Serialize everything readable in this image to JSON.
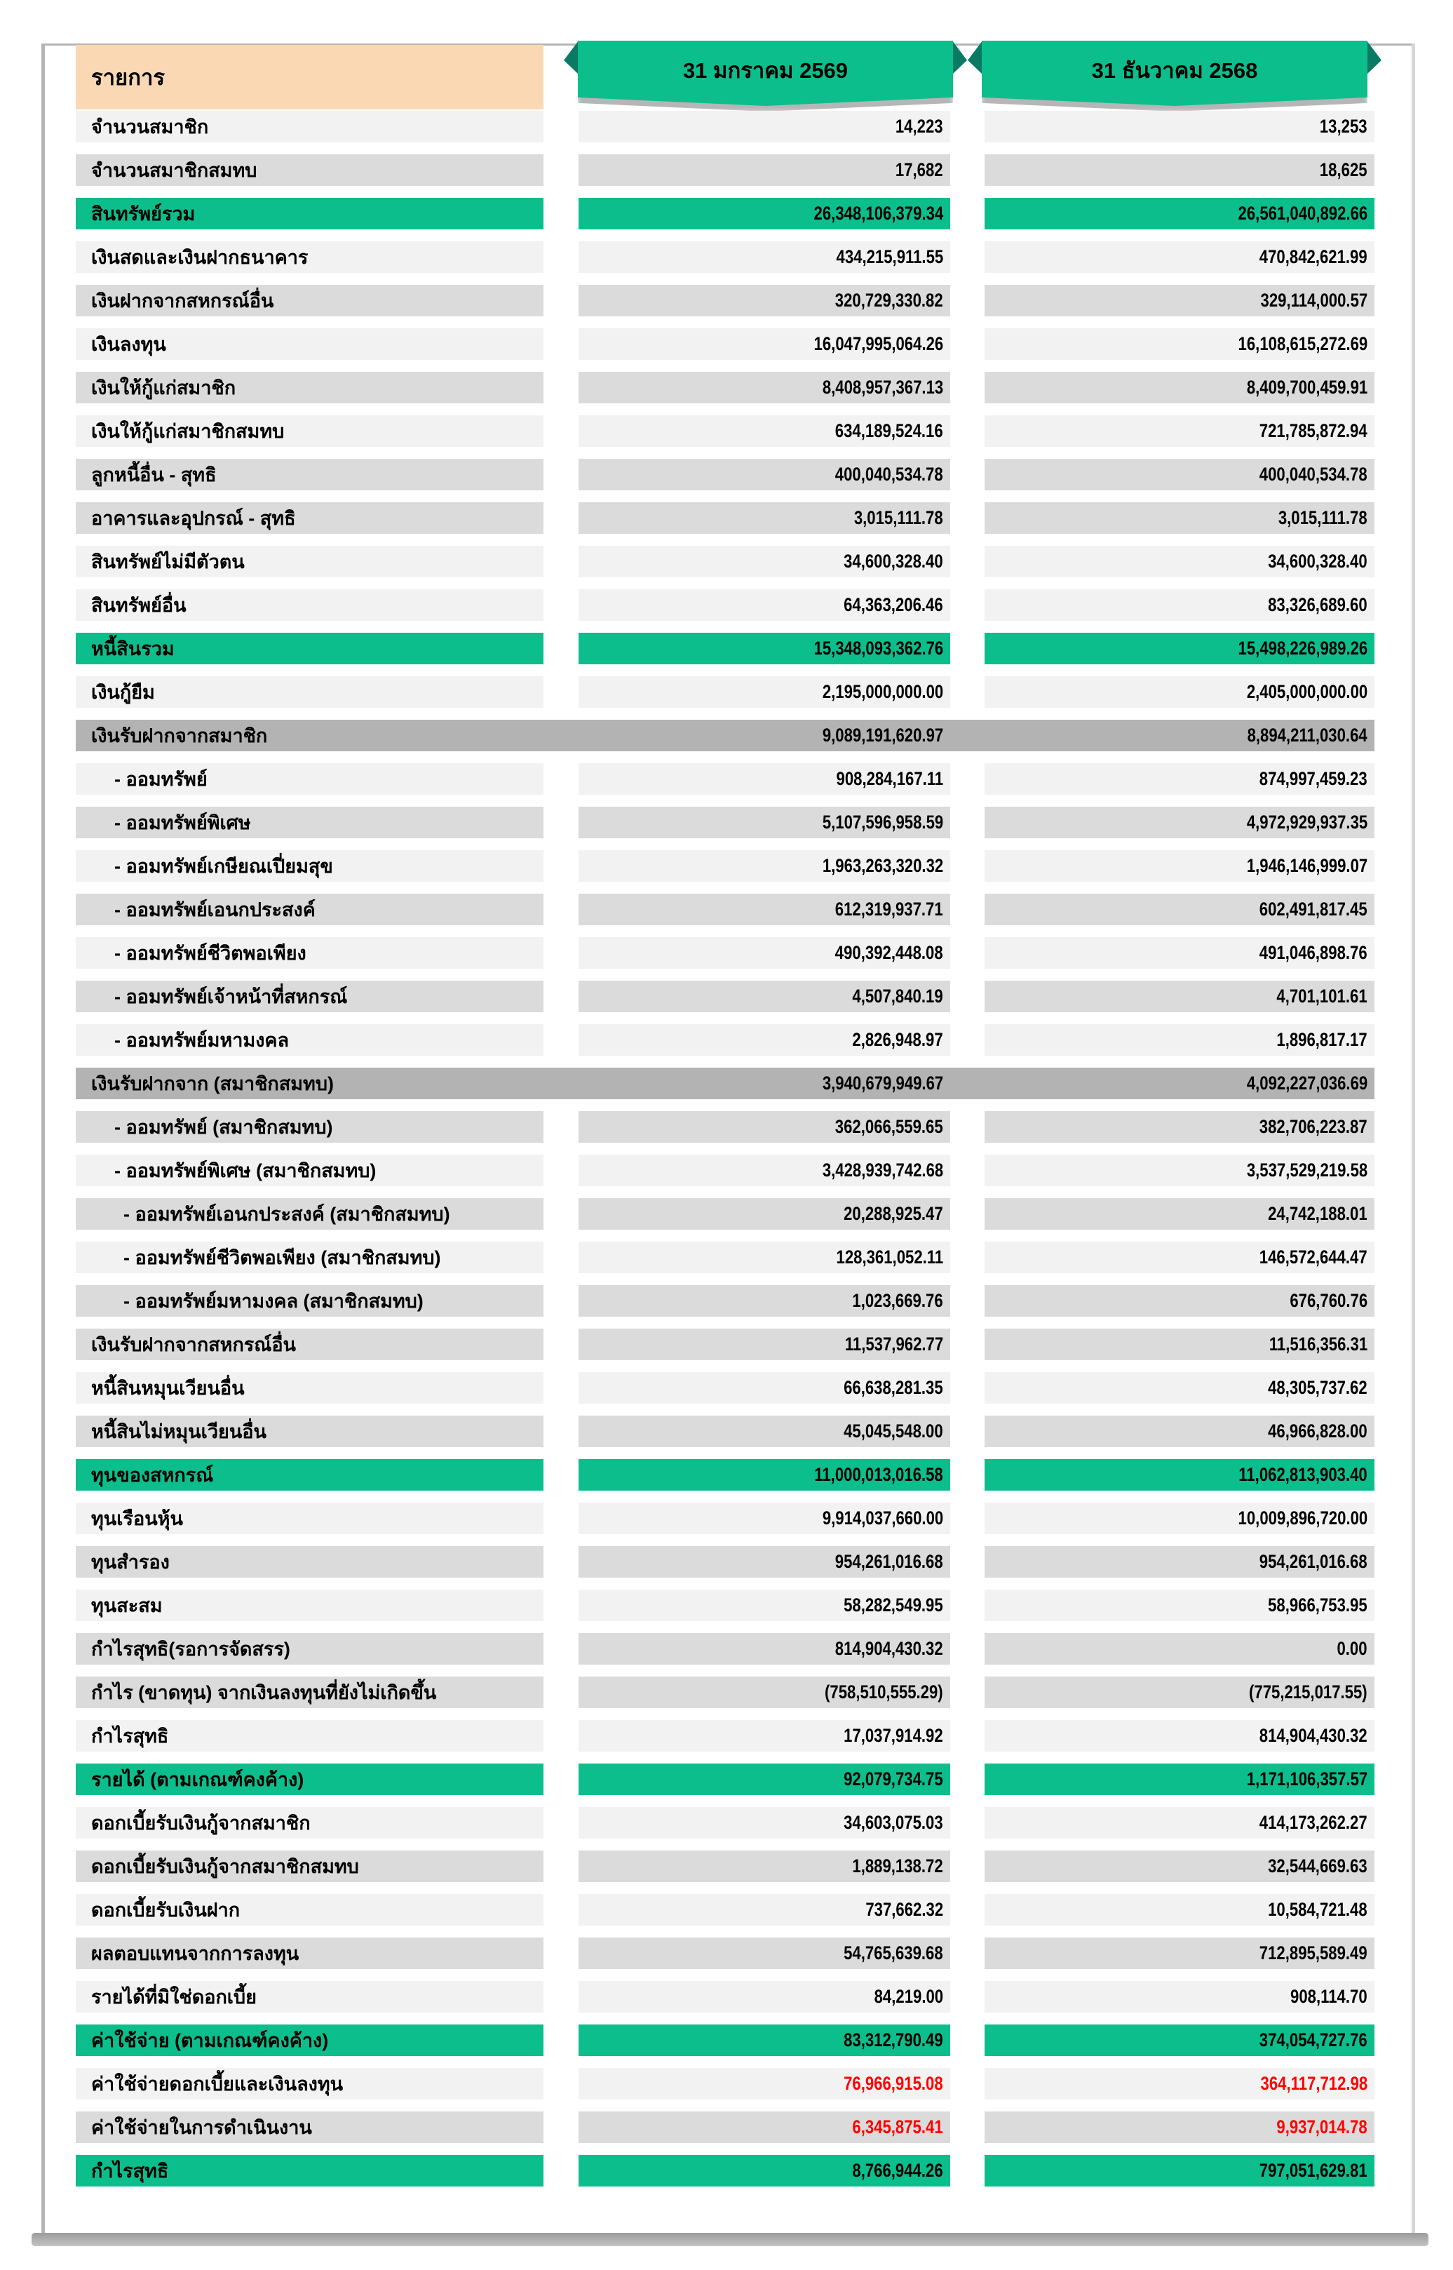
{
  "header": {
    "items_col": "รายการ",
    "col1": "31  มกราคม  2569",
    "col2": "31  ธันวาคม  2568"
  },
  "colors": {
    "green": "#0cbe8c",
    "green_fold": "#0a7a64",
    "orange": "#fad8b3",
    "row_light": "#f2f2f2",
    "row_dark": "#dbdbdb",
    "band_gray": "#b3b3b3",
    "value_red": "#ff0000",
    "frame_gray": "#b5b5b5"
  },
  "rows": [
    {
      "label": "จำนวนสมาชิก",
      "v1": "14,223",
      "v2": "13,253",
      "style": "light",
      "indent": 0,
      "red": false,
      "section_gap": false
    },
    {
      "label": "จำนวนสมาชิกสมทบ",
      "v1": "17,682",
      "v2": "18,625",
      "style": "dark",
      "indent": 0,
      "red": false,
      "section_gap": false
    },
    {
      "label": "สินทรัพย์รวม",
      "v1": "26,348,106,379.34",
      "v2": "26,561,040,892.66",
      "style": "green",
      "indent": 0,
      "red": false,
      "section_gap": true
    },
    {
      "label": "เงินสดและเงินฝากธนาคาร",
      "v1": "434,215,911.55",
      "v2": "470,842,621.99",
      "style": "light",
      "indent": 0,
      "red": false,
      "section_gap": false
    },
    {
      "label": "เงินฝากจากสหกรณ์อื่น",
      "v1": "320,729,330.82",
      "v2": "329,114,000.57",
      "style": "dark",
      "indent": 0,
      "red": false,
      "section_gap": false
    },
    {
      "label": "เงินลงทุน",
      "v1": "16,047,995,064.26",
      "v2": "16,108,615,272.69",
      "style": "light",
      "indent": 0,
      "red": false,
      "section_gap": false
    },
    {
      "label": "เงินให้กู้แก่สมาชิก",
      "v1": "8,408,957,367.13",
      "v2": "8,409,700,459.91",
      "style": "dark",
      "indent": 0,
      "red": false,
      "section_gap": false
    },
    {
      "label": "เงินให้กู้แก่สมาชิกสมทบ",
      "v1": "634,189,524.16",
      "v2": "721,785,872.94",
      "style": "light",
      "indent": 0,
      "red": false,
      "section_gap": false
    },
    {
      "label": "ลูกหนี้อื่น - สุทธิ",
      "v1": "400,040,534.78",
      "v2": "400,040,534.78",
      "style": "dark",
      "indent": 0,
      "red": false,
      "section_gap": false
    },
    {
      "label": "อาคารและอุปกรณ์ - สุทธิ",
      "v1": "3,015,111.78",
      "v2": "3,015,111.78",
      "style": "dark",
      "indent": 0,
      "red": false,
      "section_gap": false
    },
    {
      "label": "สินทรัพย์ไม่มีตัวตน",
      "v1": "34,600,328.40",
      "v2": "34,600,328.40",
      "style": "light",
      "indent": 0,
      "red": false,
      "section_gap": false
    },
    {
      "label": "สินทรัพย์อื่น",
      "v1": "64,363,206.46",
      "v2": "83,326,689.60",
      "style": "light",
      "indent": 0,
      "red": false,
      "section_gap": false
    },
    {
      "label": "หนี้สินรวม",
      "v1": "15,348,093,362.76",
      "v2": "15,498,226,989.26",
      "style": "green",
      "indent": 0,
      "red": false,
      "section_gap": true
    },
    {
      "label": "เงินกู้ยืม",
      "v1": "2,195,000,000.00",
      "v2": "2,405,000,000.00",
      "style": "light",
      "indent": 0,
      "red": false,
      "section_gap": false
    },
    {
      "label": "เงินรับฝากจากสมาชิก",
      "v1": "9,089,191,620.97",
      "v2": "8,894,211,030.64",
      "style": "band",
      "indent": 0,
      "red": false,
      "section_gap": false
    },
    {
      "label": "- ออมทรัพย์",
      "v1": "908,284,167.11",
      "v2": "874,997,459.23",
      "style": "light",
      "indent": 1,
      "red": false,
      "section_gap": false
    },
    {
      "label": "- ออมทรัพย์พิเศษ",
      "v1": "5,107,596,958.59",
      "v2": "4,972,929,937.35",
      "style": "dark",
      "indent": 1,
      "red": false,
      "section_gap": false
    },
    {
      "label": "- ออมทรัพย์เกษียณเปี่ยมสุข",
      "v1": "1,963,263,320.32",
      "v2": "1,946,146,999.07",
      "style": "light",
      "indent": 1,
      "red": false,
      "section_gap": false
    },
    {
      "label": "- ออมทรัพย์เอนกประสงค์",
      "v1": "612,319,937.71",
      "v2": "602,491,817.45",
      "style": "dark",
      "indent": 1,
      "red": false,
      "section_gap": false
    },
    {
      "label": "- ออมทรัพย์ชีวิตพอเพียง",
      "v1": "490,392,448.08",
      "v2": "491,046,898.76",
      "style": "light",
      "indent": 1,
      "red": false,
      "section_gap": false
    },
    {
      "label": "- ออมทรัพย์เจ้าหน้าที่สหกรณ์",
      "v1": "4,507,840.19",
      "v2": "4,701,101.61",
      "style": "dark",
      "indent": 1,
      "red": false,
      "section_gap": false
    },
    {
      "label": "- ออมทรัพย์มหามงคล",
      "v1": "2,826,948.97",
      "v2": "1,896,817.17",
      "style": "light",
      "indent": 1,
      "red": false,
      "section_gap": false
    },
    {
      "label": "เงินรับฝากจาก (สมาชิกสมทบ)",
      "v1": "3,940,679,949.67",
      "v2": "4,092,227,036.69",
      "style": "band",
      "indent": 0,
      "red": false,
      "section_gap": false
    },
    {
      "label": "- ออมทรัพย์ (สมาชิกสมทบ)",
      "v1": "362,066,559.65",
      "v2": "382,706,223.87",
      "style": "dark",
      "indent": 1,
      "red": false,
      "section_gap": false
    },
    {
      "label": "- ออมทรัพย์พิเศษ (สมาชิกสมทบ)",
      "v1": "3,428,939,742.68",
      "v2": "3,537,529,219.58",
      "style": "light",
      "indent": 1,
      "red": false,
      "section_gap": false
    },
    {
      "label": "- ออมทรัพย์เอนกประสงค์ (สมาชิกสมทบ)",
      "v1": "20,288,925.47",
      "v2": "24,742,188.01",
      "style": "dark",
      "indent": 2,
      "red": false,
      "section_gap": false
    },
    {
      "label": "- ออมทรัพย์ชีวิตพอเพียง (สมาชิกสมทบ)",
      "v1": "128,361,052.11",
      "v2": "146,572,644.47",
      "style": "light",
      "indent": 2,
      "red": false,
      "section_gap": false
    },
    {
      "label": "- ออมทรัพย์มหามงคล (สมาชิกสมทบ)",
      "v1": "1,023,669.76",
      "v2": "676,760.76",
      "style": "dark",
      "indent": 2,
      "red": false,
      "section_gap": false
    },
    {
      "label": "เงินรับฝากจากสหกรณ์อื่น",
      "v1": "11,537,962.77",
      "v2": "11,516,356.31",
      "style": "dark",
      "indent": 0,
      "red": false,
      "section_gap": false
    },
    {
      "label": "หนี้สินหมุนเวียนอื่น",
      "v1": "66,638,281.35",
      "v2": "48,305,737.62",
      "style": "light",
      "indent": 0,
      "red": false,
      "section_gap": false
    },
    {
      "label": "หนี้สินไม่หมุนเวียนอื่น",
      "v1": "45,045,548.00",
      "v2": "46,966,828.00",
      "style": "dark",
      "indent": 0,
      "red": false,
      "section_gap": false
    },
    {
      "label": "ทุนของสหกรณ์",
      "v1": "11,000,013,016.58",
      "v2": "11,062,813,903.40",
      "style": "green",
      "indent": 0,
      "red": false,
      "section_gap": false
    },
    {
      "label": "ทุนเรือนหุ้น",
      "v1": "9,914,037,660.00",
      "v2": "10,009,896,720.00",
      "style": "light",
      "indent": 0,
      "red": false,
      "section_gap": false
    },
    {
      "label": "ทุนสำรอง",
      "v1": "954,261,016.68",
      "v2": "954,261,016.68",
      "style": "dark",
      "indent": 0,
      "red": false,
      "section_gap": false
    },
    {
      "label": "ทุนสะสม",
      "v1": "58,282,549.95",
      "v2": "58,966,753.95",
      "style": "light",
      "indent": 0,
      "red": false,
      "section_gap": false
    },
    {
      "label": "กำไรสุทธิ(รอการจัดสรร)",
      "v1": "814,904,430.32",
      "v2": "0.00",
      "style": "dark",
      "indent": 0,
      "red": false,
      "section_gap": false
    },
    {
      "label": "กำไร (ขาดทุน) จากเงินลงทุนที่ยังไม่เกิดขึ้น",
      "v1": "(758,510,555.29)",
      "v2": "(775,215,017.55)",
      "style": "dark",
      "indent": 0,
      "red": false,
      "section_gap": false
    },
    {
      "label": "กำไรสุทธิ",
      "v1": "17,037,914.92",
      "v2": "814,904,430.32",
      "style": "light",
      "indent": 0,
      "red": false,
      "section_gap": false
    },
    {
      "label": "รายได้ (ตามเกณฑ์คงค้าง)",
      "v1": "92,079,734.75",
      "v2": "1,171,106,357.57",
      "style": "green",
      "indent": 0,
      "red": false,
      "section_gap": false
    },
    {
      "label": "ดอกเบี้ยรับเงินกู้จากสมาชิก",
      "v1": "34,603,075.03",
      "v2": "414,173,262.27",
      "style": "light",
      "indent": 0,
      "red": false,
      "section_gap": false
    },
    {
      "label": "ดอกเบี้ยรับเงินกู้จากสมาชิกสมทบ",
      "v1": "1,889,138.72",
      "v2": "32,544,669.63",
      "style": "dark",
      "indent": 0,
      "red": false,
      "section_gap": false
    },
    {
      "label": "ดอกเบี้ยรับเงินฝาก",
      "v1": "737,662.32",
      "v2": "10,584,721.48",
      "style": "light",
      "indent": 0,
      "red": false,
      "section_gap": false
    },
    {
      "label": "ผลตอบแทนจากการลงทุน",
      "v1": "54,765,639.68",
      "v2": "712,895,589.49",
      "style": "dark",
      "indent": 0,
      "red": false,
      "section_gap": false
    },
    {
      "label": "รายได้ที่มิใช่ดอกเบี้ย",
      "v1": "84,219.00",
      "v2": "908,114.70",
      "style": "light",
      "indent": 0,
      "red": false,
      "section_gap": false
    },
    {
      "label": "ค่าใช้จ่าย (ตามเกณฑ์คงค้าง)",
      "v1": "83,312,790.49",
      "v2": "374,054,727.76",
      "style": "green",
      "indent": 0,
      "red": false,
      "section_gap": false
    },
    {
      "label": "ค่าใช้จ่ายดอกเบี้ยและเงินลงทุน",
      "v1": "76,966,915.08",
      "v2": "364,117,712.98",
      "style": "light",
      "indent": 0,
      "red": true,
      "section_gap": false
    },
    {
      "label": "ค่าใช้จ่ายในการดำเนินงาน",
      "v1": "6,345,875.41",
      "v2": "9,937,014.78",
      "style": "dark",
      "indent": 0,
      "red": true,
      "section_gap": false
    },
    {
      "label": "กำไรสุทธิ",
      "v1": "8,766,944.26",
      "v2": "797,051,629.81",
      "style": "green",
      "indent": 0,
      "red": false,
      "section_gap": false
    }
  ]
}
